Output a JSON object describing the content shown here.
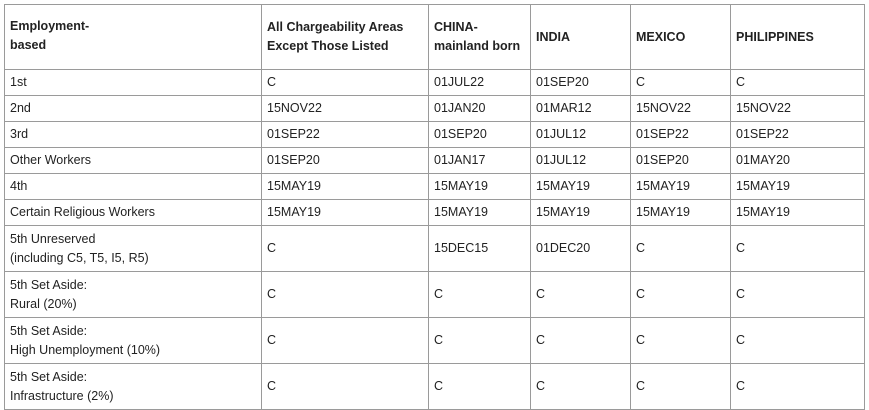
{
  "table": {
    "headers": [
      "Employment-\nbased",
      "All Chargeability Areas Except Those Listed",
      "CHINA-mainland born",
      "INDIA",
      "MEXICO",
      "PHILIPPINES"
    ],
    "rows": [
      [
        "1st",
        "C",
        "01JUL22",
        "01SEP20",
        "C",
        "C"
      ],
      [
        "2nd",
        "15NOV22",
        "01JAN20",
        "01MAR12",
        "15NOV22",
        "15NOV22"
      ],
      [
        "3rd",
        "01SEP22",
        "01SEP20",
        "01JUL12",
        "01SEP22",
        "01SEP22"
      ],
      [
        "Other Workers",
        "01SEP20",
        "01JAN17",
        "01JUL12",
        "01SEP20",
        "01MAY20"
      ],
      [
        "4th",
        "15MAY19",
        "15MAY19",
        "15MAY19",
        "15MAY19",
        "15MAY19"
      ],
      [
        "Certain Religious Workers",
        "15MAY19",
        "15MAY19",
        "15MAY19",
        "15MAY19",
        "15MAY19"
      ],
      [
        "5th Unreserved\n(including C5, T5, I5, R5)",
        "C",
        "15DEC15",
        "01DEC20",
        "C",
        "C"
      ],
      [
        "5th Set Aside:\nRural (20%)",
        "C",
        "C",
        "C",
        "C",
        "C"
      ],
      [
        "5th Set Aside:\nHigh Unemployment (10%)",
        "C",
        "C",
        "C",
        "C",
        "C"
      ],
      [
        "5th Set Aside:\nInfrastructure (2%)",
        "C",
        "C",
        "C",
        "C",
        "C"
      ]
    ]
  }
}
